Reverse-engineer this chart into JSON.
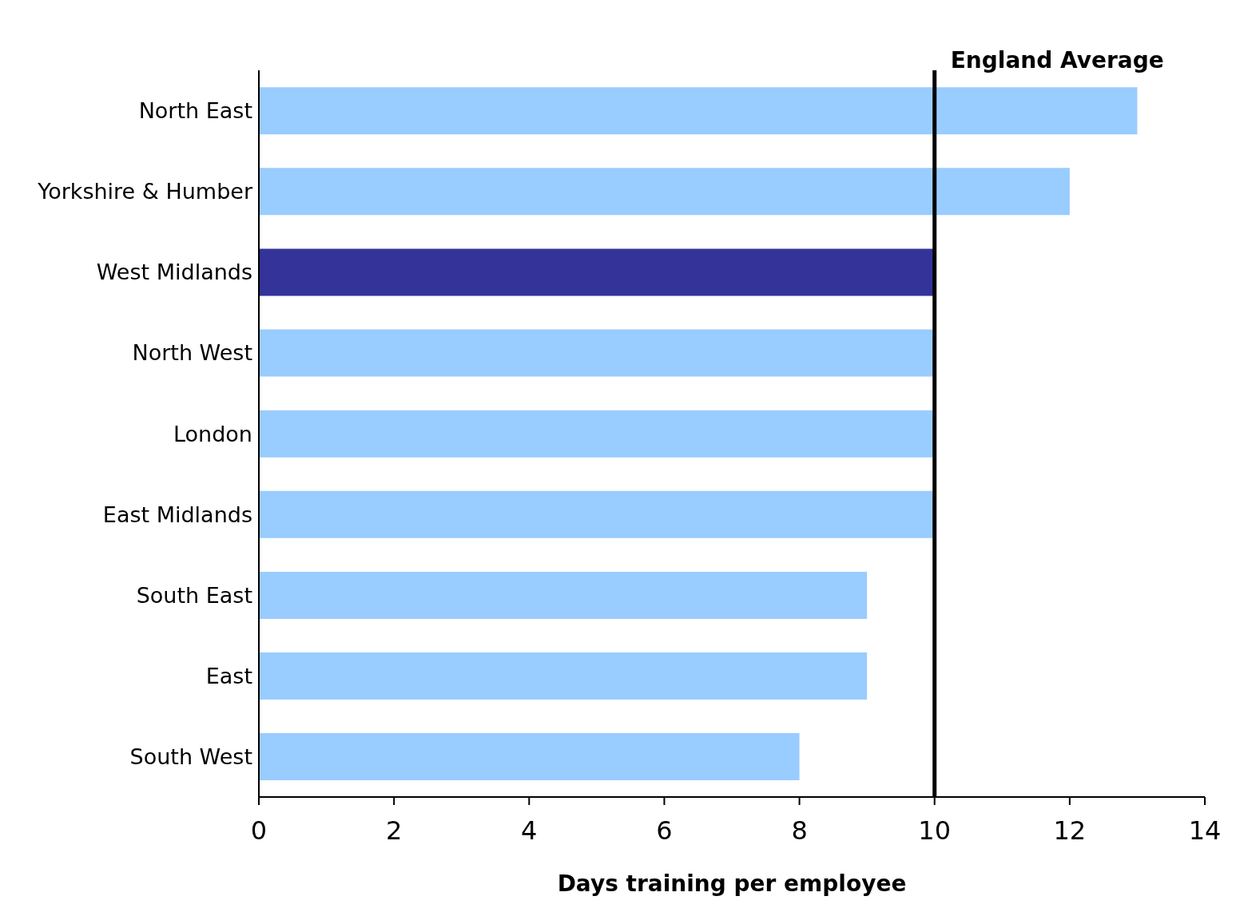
{
  "chart_data": {
    "type": "bar",
    "orientation": "horizontal",
    "xlabel": "Days training per employee",
    "categories": [
      "North East",
      "Yorkshire & Humber",
      "West Midlands",
      "North West",
      "London",
      "East Midlands",
      "South East",
      "East",
      "South West"
    ],
    "values": [
      13,
      12,
      10,
      10,
      10,
      10,
      9,
      9,
      8
    ],
    "colors": [
      "#99ccff",
      "#99ccff",
      "#333399",
      "#99ccff",
      "#99ccff",
      "#99ccff",
      "#99ccff",
      "#99ccff",
      "#99ccff"
    ],
    "xlim": [
      0,
      14
    ],
    "xticks": [
      0,
      2,
      4,
      6,
      8,
      10,
      12,
      14
    ],
    "grid": false,
    "legend": false,
    "ref_lines": [
      {
        "axis": "x",
        "value": 10,
        "label": "England Average",
        "color": "#000000"
      }
    ]
  }
}
